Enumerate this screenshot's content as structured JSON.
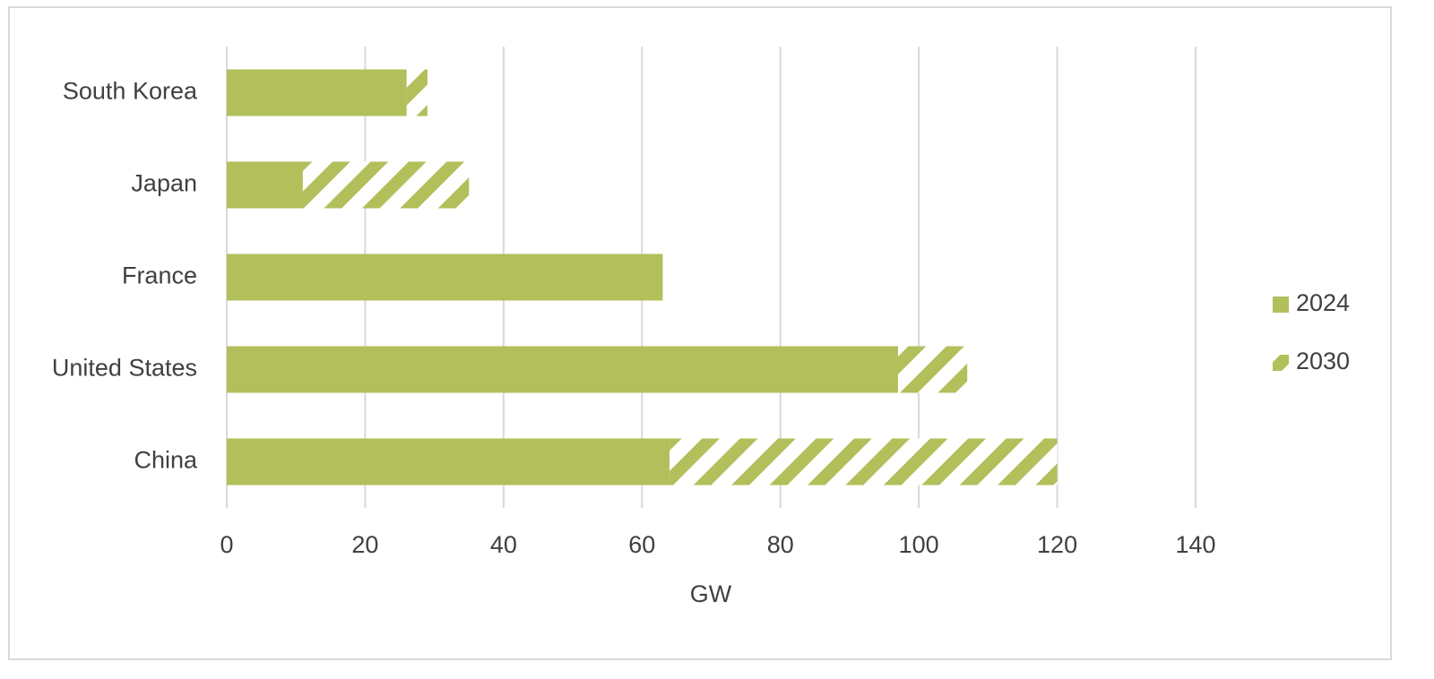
{
  "chart_data": {
    "type": "stacked-barh",
    "categories": [
      "China",
      "United States",
      "France",
      "Japan",
      "South Korea"
    ],
    "series": [
      {
        "name": "2024",
        "color": "#b2bf5a",
        "values": [
          64,
          97,
          63,
          11,
          26
        ]
      },
      {
        "name": "2030",
        "color": "#b2bf5a",
        "pattern": "hatch",
        "values": [
          56,
          10,
          0,
          24,
          3
        ]
      }
    ],
    "xlabel": "GW",
    "xlim": [
      0,
      140
    ],
    "xticks": [
      0,
      20,
      40,
      60,
      80,
      100,
      120,
      140
    ],
    "grid": true,
    "legend": "right"
  }
}
